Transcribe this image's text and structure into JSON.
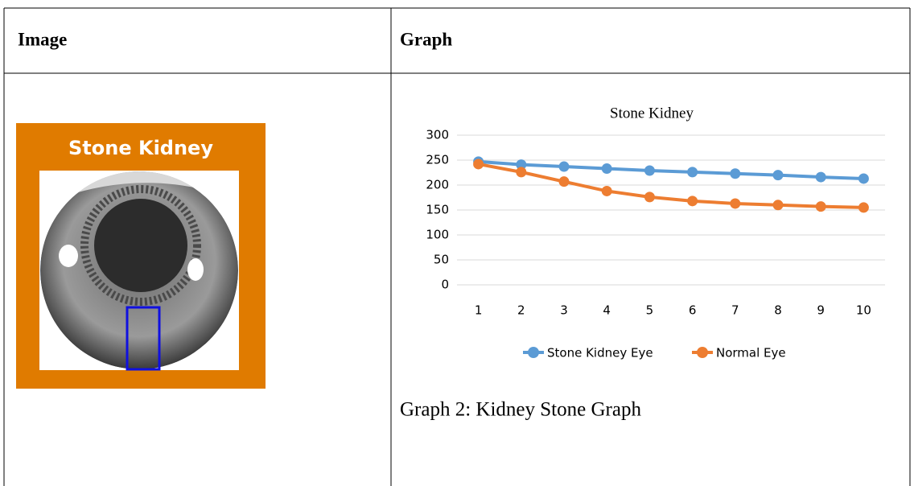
{
  "table": {
    "headers": [
      "Image",
      "Graph"
    ]
  },
  "image": {
    "label": "Stone Kidney"
  },
  "chart_data": {
    "type": "line",
    "title": "Stone Kidney",
    "categories": [
      "1",
      "2",
      "3",
      "4",
      "5",
      "6",
      "7",
      "8",
      "9",
      "10"
    ],
    "series": [
      {
        "name": "Stone Kidney Eye",
        "color": "#5b9bd5",
        "values": [
          247,
          241,
          237,
          233,
          229,
          226,
          223,
          220,
          216,
          213
        ]
      },
      {
        "name": "Normal Eye",
        "color": "#ed7d31",
        "values": [
          242,
          226,
          207,
          188,
          176,
          168,
          163,
          160,
          157,
          155
        ]
      }
    ],
    "ylim": [
      0,
      300
    ],
    "yticks": [
      0,
      50,
      100,
      150,
      200,
      250,
      300
    ],
    "grid": true,
    "legend": "bottom"
  },
  "caption": "Graph 2: Kidney Stone Graph"
}
